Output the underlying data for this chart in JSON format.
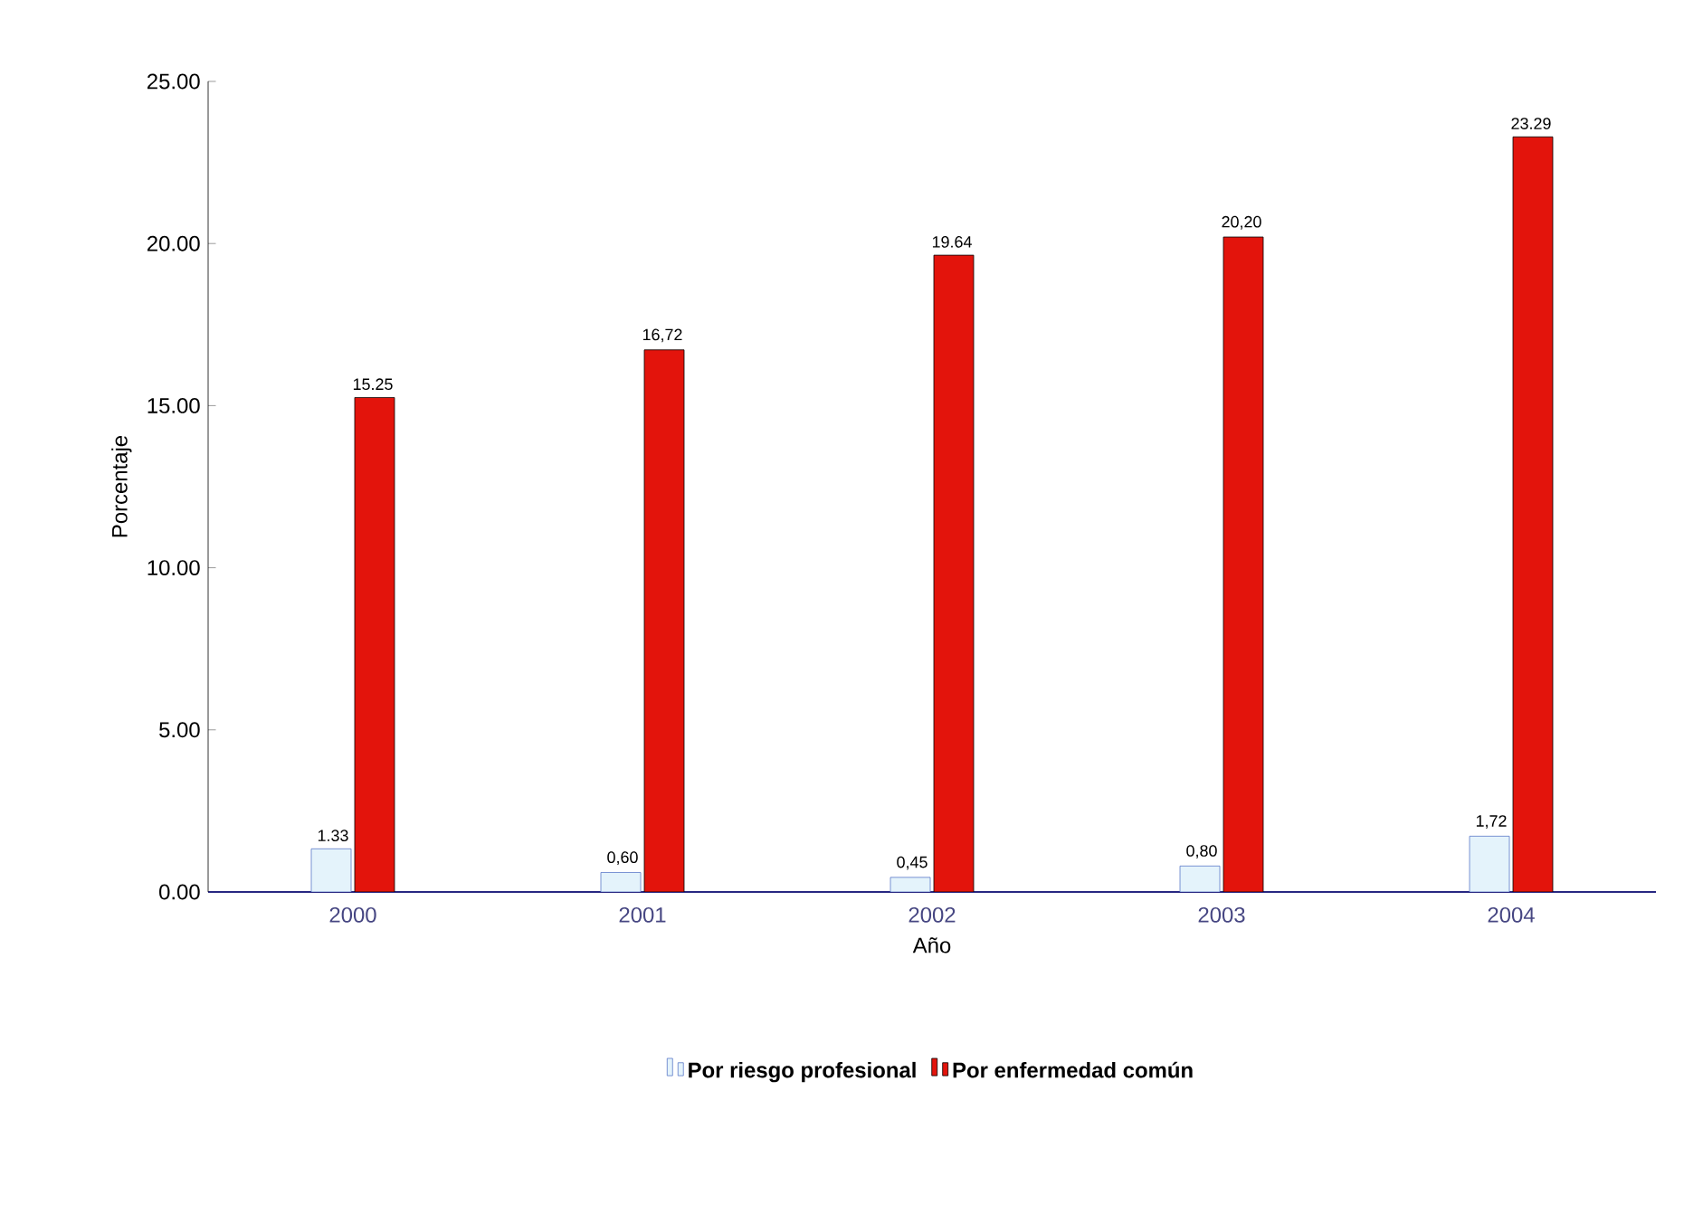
{
  "chart_data": {
    "type": "bar",
    "xlabel": "Año",
    "ylabel": "Porcentaje",
    "categories": [
      "2000",
      "2001",
      "2002",
      "2003",
      "2004"
    ],
    "series": [
      {
        "name": "Por riesgo profesional",
        "color": "#e4f3fb",
        "values": [
          1.33,
          0.6,
          0.45,
          0.8,
          1.72
        ],
        "value_labels": [
          "1.33",
          "0,60",
          "0,45",
          "0,80",
          "1,72"
        ]
      },
      {
        "name": "Por enfermedad común",
        "color": "#e3140c",
        "values": [
          15.25,
          16.72,
          19.64,
          20.2,
          23.29
        ],
        "value_labels": [
          "15.25",
          "16,72",
          "19.64",
          "20,20",
          "23.29"
        ]
      }
    ],
    "ylim": [
      0,
      25
    ],
    "yticks": [
      {
        "value": 0,
        "label": "0.00"
      },
      {
        "value": 5,
        "label": "5.00"
      },
      {
        "value": 10,
        "label": "10.00"
      },
      {
        "value": 15,
        "label": "15.00"
      },
      {
        "value": 20,
        "label": "20.00"
      },
      {
        "value": 25,
        "label": "25.00"
      }
    ],
    "legend": "bottom"
  }
}
